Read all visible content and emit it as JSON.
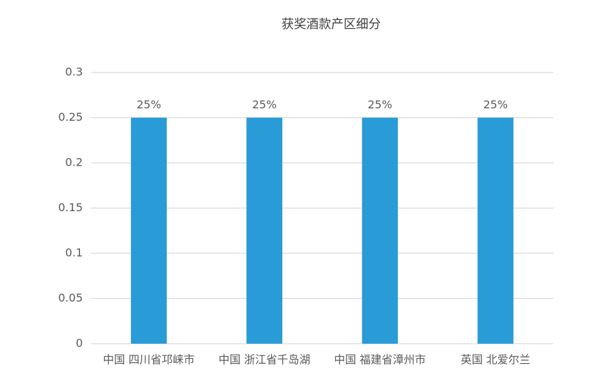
{
  "chart_data": {
    "type": "bar",
    "title": "获奖酒款产区细分",
    "categories": [
      "中国 四川省邛崃市",
      "中国 浙江省千岛湖",
      "中国 福建省漳州市",
      "英国 北爱尔兰"
    ],
    "values": [
      0.25,
      0.25,
      0.25,
      0.25
    ],
    "value_labels": [
      "25%",
      "25%",
      "25%",
      "25%"
    ],
    "color": "#299bd6",
    "ylim": [
      0,
      0.3
    ],
    "yticks": [
      0,
      0.05,
      0.1,
      0.15,
      0.2,
      0.25,
      0.3
    ],
    "grid": true
  }
}
